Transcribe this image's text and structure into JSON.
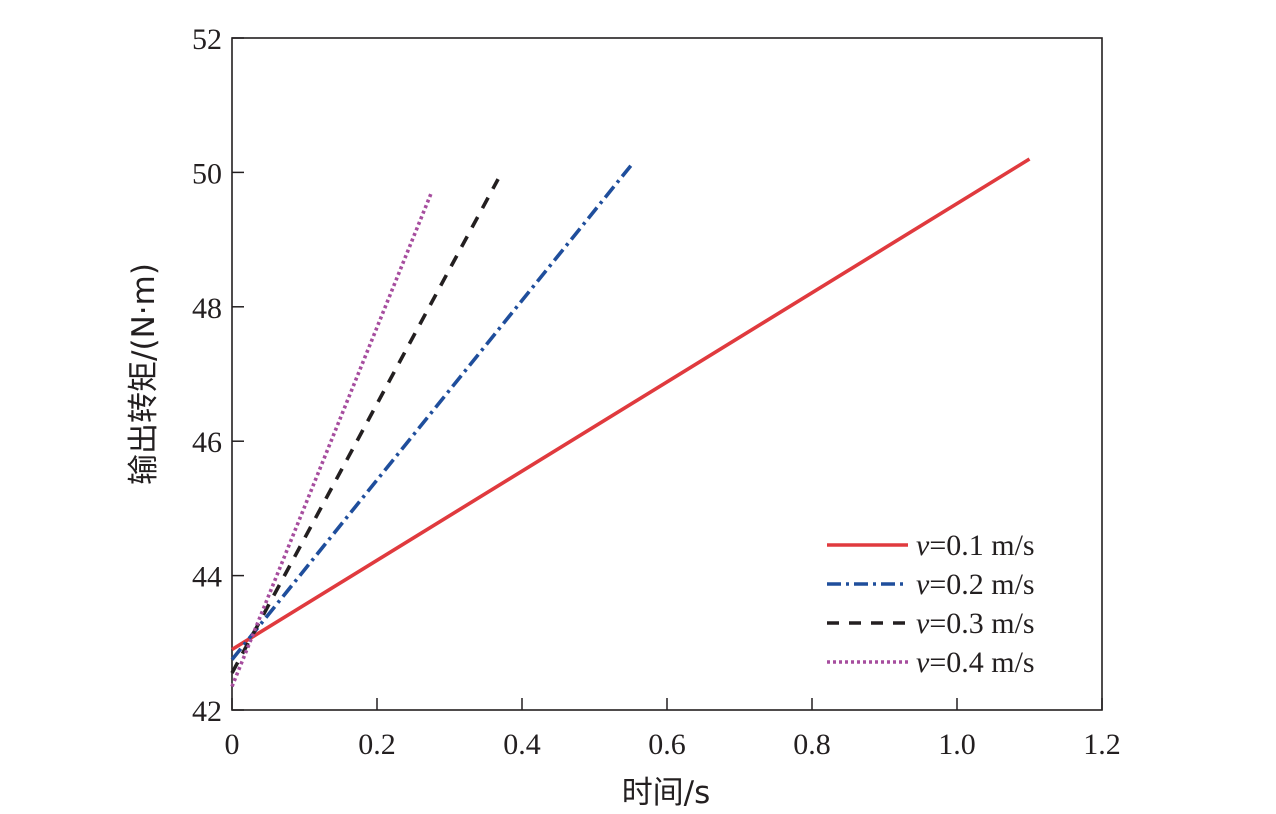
{
  "chart_data": {
    "type": "line",
    "title": "",
    "xlabel": "时间/s",
    "ylabel": "输出转矩/(N·m)",
    "xlim": [
      0,
      1.2
    ],
    "ylim": [
      42,
      52
    ],
    "x_ticks": [
      0,
      0.2,
      0.4,
      0.6,
      0.8,
      1.0,
      1.2
    ],
    "x_tick_labels": [
      "0",
      "0.2",
      "0.4",
      "0.6",
      "0.8",
      "1.0",
      "1.2"
    ],
    "y_ticks": [
      42,
      44,
      46,
      48,
      50,
      52
    ],
    "y_tick_labels": [
      "42",
      "44",
      "46",
      "48",
      "50",
      "52"
    ],
    "grid": false,
    "legend_position": "bottom-right",
    "series": [
      {
        "name": "v=0.1 m/s",
        "legend_var": "v",
        "legend_rest": "=0.1 m/s",
        "color": "#e03a3e",
        "style": "solid",
        "x": [
          0,
          1.1
        ],
        "y": [
          42.9,
          50.2
        ]
      },
      {
        "name": "v=0.2 m/s",
        "legend_var": "v",
        "legend_rest": "=0.2 m/s",
        "color": "#1f4e9c",
        "style": "dashdot",
        "x": [
          0,
          0.55
        ],
        "y": [
          42.75,
          50.1
        ]
      },
      {
        "name": "v=0.3 m/s",
        "legend_var": "v",
        "legend_rest": "=0.3 m/s",
        "color": "#231f20",
        "style": "dashed",
        "x": [
          0,
          0.367
        ],
        "y": [
          42.55,
          49.9
        ]
      },
      {
        "name": "v=0.4 m/s",
        "legend_var": "v",
        "legend_rest": "=0.4 m/s",
        "color": "#a64d9e",
        "style": "dotted",
        "x": [
          0,
          0.275
        ],
        "y": [
          42.35,
          49.7
        ]
      }
    ]
  }
}
